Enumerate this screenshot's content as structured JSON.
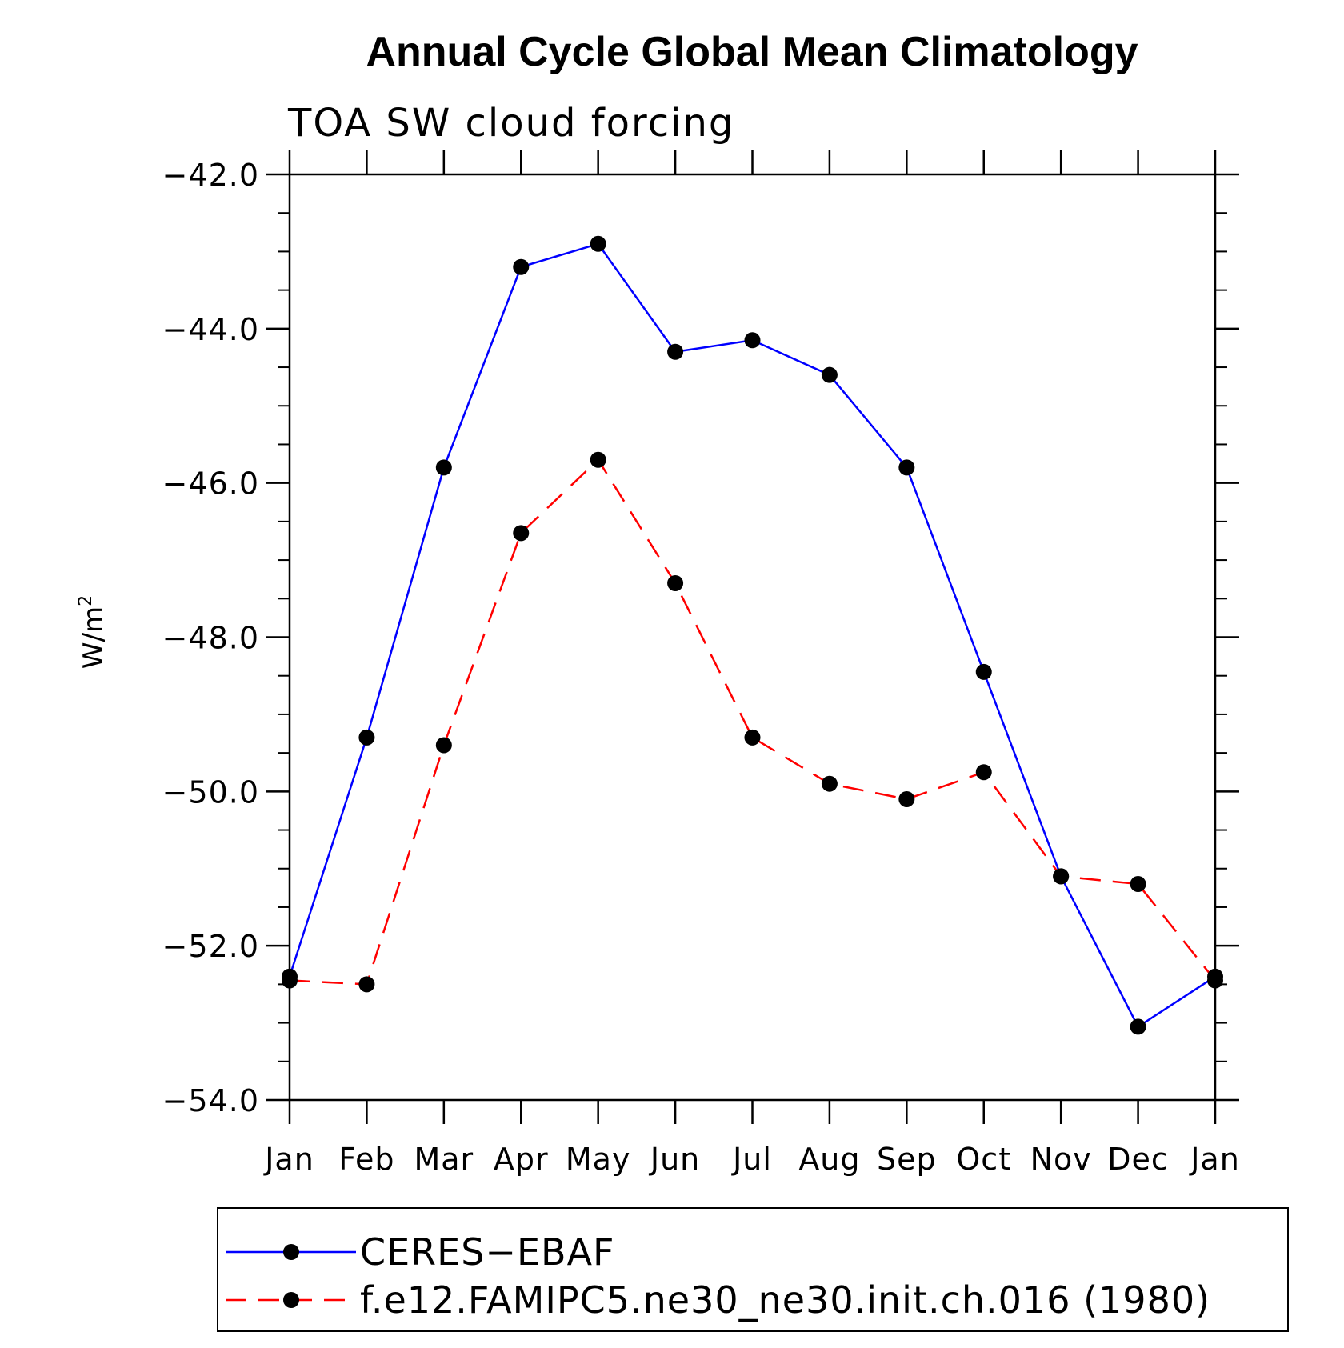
{
  "chart_data": {
    "type": "line",
    "title": "Annual Cycle Global Mean Climatology",
    "subtitle": "TOA SW cloud forcing",
    "ylabel": "W/m",
    "ylabel_superscript": "2",
    "xlabel": "",
    "categories": [
      "Jan",
      "Feb",
      "Mar",
      "Apr",
      "May",
      "Jun",
      "Jul",
      "Aug",
      "Sep",
      "Oct",
      "Nov",
      "Dec",
      "Jan"
    ],
    "ylim": [
      -54.0,
      -42.0
    ],
    "yticks": [
      -54.0,
      -52.0,
      -50.0,
      -48.0,
      -46.0,
      -44.0,
      -42.0
    ],
    "ytick_labels": [
      "−54.0",
      "−52.0",
      "−50.0",
      "−48.0",
      "−46.0",
      "−44.0",
      "−42.0"
    ],
    "grid": false,
    "legend_position": "bottom",
    "series": [
      {
        "name": "CERES−EBAF",
        "color": "#0000ff",
        "style": "solid",
        "marker": "circle",
        "values": [
          -52.4,
          -49.3,
          -45.8,
          -43.2,
          -42.9,
          -44.3,
          -44.15,
          -44.6,
          -45.8,
          -48.45,
          -51.1,
          -53.05,
          -52.4
        ]
      },
      {
        "name": "f.e12.FAMIPC5.ne30_ne30.init.ch.016 (1980)",
        "color": "#ff0000",
        "style": "dashed",
        "marker": "circle",
        "values": [
          -52.45,
          -52.5,
          -49.4,
          -46.65,
          -45.7,
          -47.3,
          -49.3,
          -49.9,
          -50.1,
          -49.75,
          -51.1,
          -51.2,
          -52.45
        ]
      }
    ]
  }
}
